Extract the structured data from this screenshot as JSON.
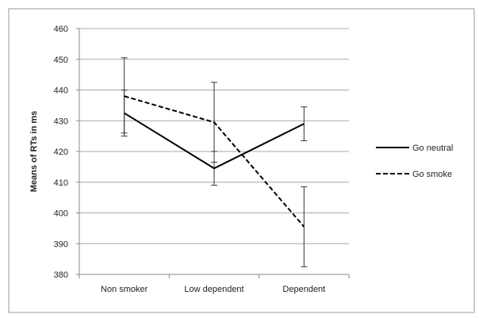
{
  "chart_data": {
    "type": "line",
    "title": "",
    "xlabel": "",
    "ylabel": "Means of RTs in ms",
    "categories": [
      "Non smoker",
      "Low dependent",
      "Dependent"
    ],
    "ylim": [
      380,
      460
    ],
    "yticks": [
      380,
      390,
      400,
      410,
      420,
      430,
      440,
      450,
      460
    ],
    "grid": true,
    "legend_position": "right",
    "series": [
      {
        "name": "Go neutral",
        "style": "solid",
        "color": "#000000",
        "values": [
          432.5,
          414.5,
          429
        ],
        "error_low": [
          425,
          409,
          423.5
        ],
        "error_high": [
          440,
          420,
          434.5
        ]
      },
      {
        "name": "Go smoke",
        "style": "dashed",
        "color": "#000000",
        "values": [
          438,
          429.5,
          395.5
        ],
        "error_low": [
          426,
          416.5,
          382.5
        ],
        "error_high": [
          450.5,
          442.5,
          408.5
        ]
      }
    ]
  }
}
